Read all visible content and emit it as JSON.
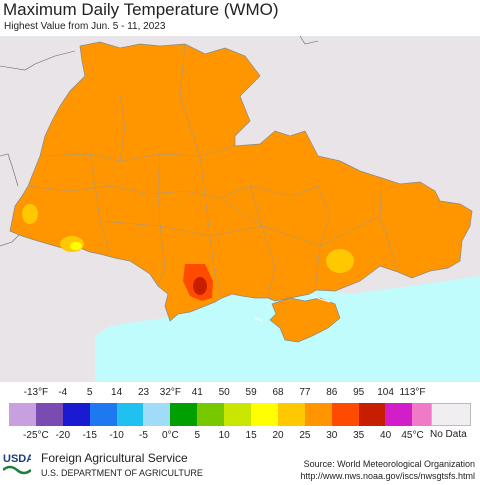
{
  "header": {
    "title": "Maximum Daily Temperature (WMO)",
    "subtitle": "Highest Value from Jun. 5 - 11, 2023"
  },
  "legend": {
    "fahrenheit_labels": [
      "-13°F",
      "-4",
      "5",
      "14",
      "23",
      "32°F",
      "41",
      "50",
      "59",
      "68",
      "77",
      "86",
      "95",
      "104",
      "113°F"
    ],
    "celsius_labels": [
      "-25°C",
      "-20",
      "-15",
      "-10",
      "-5",
      "0°C",
      "5",
      "10",
      "15",
      "20",
      "25",
      "30",
      "35",
      "40",
      "45°C"
    ],
    "colors": [
      "#c8a0e0",
      "#7a4bb0",
      "#1a1ad0",
      "#1e78f0",
      "#20c0f0",
      "#a0dcf8",
      "#00a000",
      "#78c800",
      "#c8e600",
      "#ffff00",
      "#ffc800",
      "#ff9600",
      "#ff4b00",
      "#c81e00",
      "#d21ec8",
      "#f07ac8"
    ],
    "no_data_label": "No Data",
    "no_data_color": "#f0eef0"
  },
  "map": {
    "sea_color": "#c0fcfc",
    "land_outside_color": "#e8e4e8",
    "main_fill_color": "#ff9600",
    "warm_spot_color": "#ffc800",
    "hot_spot_color": "#ff4b00",
    "hottest_spot_color": "#c81e00"
  },
  "footer": {
    "agency": "Foreign Agricultural Service",
    "department": "U.S. DEPARTMENT OF AGRICULTURE",
    "source": "Source: World Meteorological Organization",
    "url": "http://www.nws.noaa.gov/iscs/nwsgtsfs.html",
    "logo_text": "USDA"
  }
}
